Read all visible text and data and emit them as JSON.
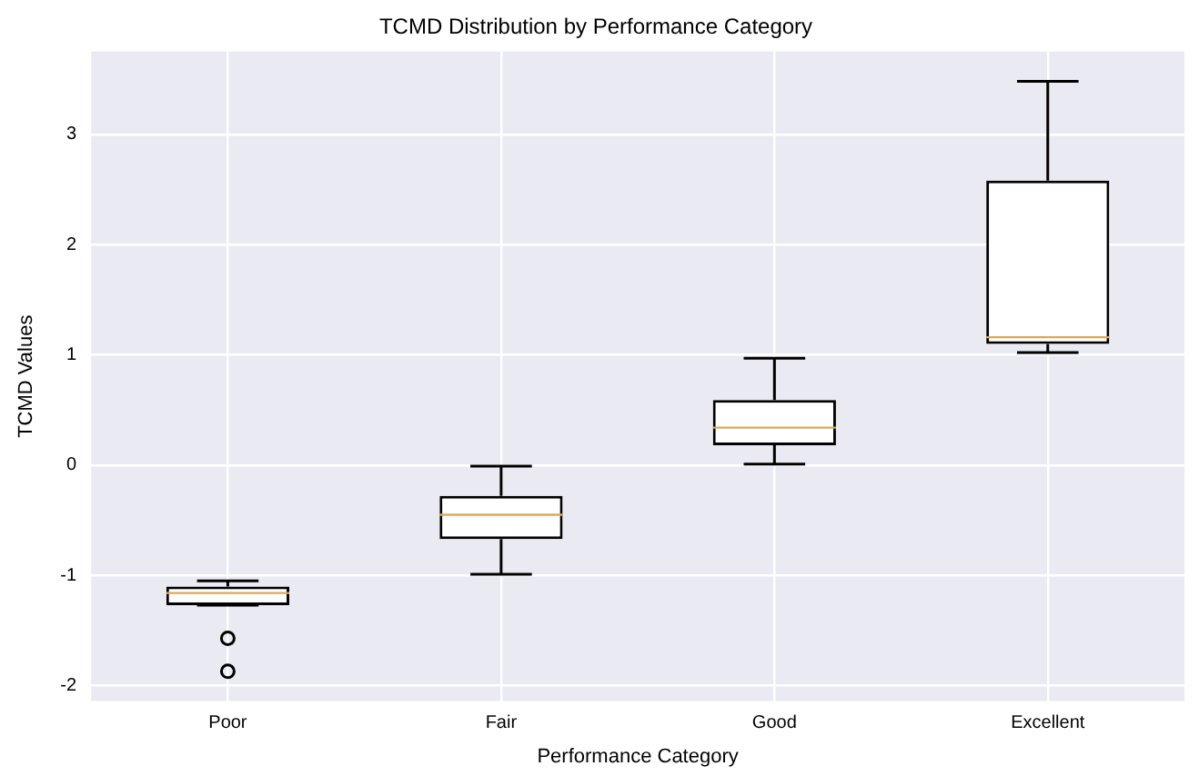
{
  "chart_data": {
    "type": "box",
    "title": "TCMD Distribution by Performance Category",
    "xlabel": "Performance Category",
    "ylabel": "TCMD Values",
    "categories": [
      "Poor",
      "Fair",
      "Good",
      "Excellent"
    ],
    "boxes": [
      {
        "low": -1.27,
        "q1": -1.27,
        "median": -1.16,
        "q3": -1.1,
        "high": -1.05,
        "outliers": [
          -1.57,
          -1.87
        ]
      },
      {
        "low": -0.99,
        "q1": -0.67,
        "median": -0.45,
        "q3": -0.28,
        "high": -0.01
      },
      {
        "low": 0.01,
        "q1": 0.18,
        "median": 0.34,
        "q3": 0.59,
        "high": 0.97
      },
      {
        "low": 1.02,
        "q1": 1.1,
        "median": 1.16,
        "q3": 2.58,
        "high": 3.48
      }
    ],
    "ylim": [
      -2.14,
      3.75
    ],
    "yticks": [
      -2,
      -1,
      0,
      1,
      2,
      3
    ],
    "grid": true
  }
}
